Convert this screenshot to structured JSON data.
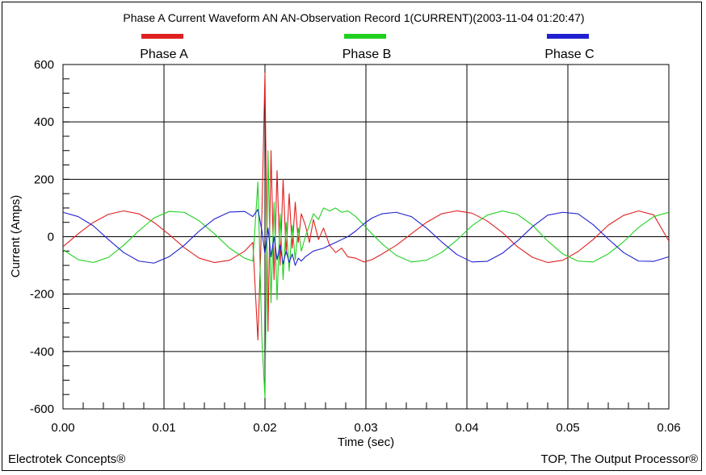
{
  "chart_data": {
    "type": "line",
    "title": "Phase A Current Waveform AN AN-Observation Record 1(CURRENT)(2003-11-04 01:20:47)",
    "xlabel": "Time (sec)",
    "ylabel": "Current (Amps)",
    "xlim": [
      0,
      0.06
    ],
    "ylim": [
      -600,
      600
    ],
    "x_ticks": [
      0.0,
      0.01,
      0.02,
      0.03,
      0.04,
      0.05,
      0.06
    ],
    "x_tick_labels": [
      "0.00",
      "0.01",
      "0.02",
      "0.03",
      "0.04",
      "0.05",
      "0.06"
    ],
    "y_ticks": [
      -600,
      -400,
      -200,
      0,
      200,
      400,
      600
    ],
    "y_tick_labels": [
      "-600",
      "-400",
      "-200",
      "0",
      "200",
      "400",
      "600"
    ],
    "grid": true,
    "legend_position": "top",
    "series": [
      {
        "name": "Phase A",
        "color": "#e02020",
        "x": [
          0.0,
          0.0015,
          0.003,
          0.0045,
          0.006,
          0.0075,
          0.009,
          0.0105,
          0.012,
          0.0135,
          0.015,
          0.0165,
          0.018,
          0.0188,
          0.0193,
          0.0197,
          0.02,
          0.0203,
          0.0206,
          0.0209,
          0.0212,
          0.0215,
          0.0218,
          0.0221,
          0.0224,
          0.0227,
          0.023,
          0.0233,
          0.0236,
          0.024,
          0.0244,
          0.0248,
          0.0253,
          0.0258,
          0.0264,
          0.027,
          0.0276,
          0.0282,
          0.029,
          0.0298,
          0.0306,
          0.0316,
          0.033,
          0.0345,
          0.036,
          0.0375,
          0.039,
          0.0405,
          0.042,
          0.0435,
          0.045,
          0.0465,
          0.048,
          0.0495,
          0.051,
          0.0525,
          0.054,
          0.0555,
          0.057,
          0.0585,
          0.06
        ],
        "y": [
          -35,
          10,
          50,
          78,
          90,
          80,
          50,
          8,
          -38,
          -75,
          -90,
          -82,
          -50,
          -20,
          -360,
          80,
          570,
          -330,
          300,
          -150,
          230,
          -100,
          200,
          -60,
          150,
          -40,
          120,
          -20,
          80,
          40,
          -20,
          60,
          -10,
          30,
          -30,
          -55,
          -40,
          -70,
          -75,
          -88,
          -80,
          -60,
          -30,
          10,
          50,
          80,
          90,
          82,
          55,
          15,
          -35,
          -72,
          -90,
          -82,
          -52,
          -10,
          40,
          74,
          90,
          76,
          -15
        ]
      },
      {
        "name": "Phase B",
        "color": "#20d020",
        "x": [
          0.0,
          0.0015,
          0.003,
          0.0045,
          0.006,
          0.0075,
          0.009,
          0.0105,
          0.012,
          0.0135,
          0.015,
          0.0165,
          0.018,
          0.0188,
          0.0193,
          0.0197,
          0.02,
          0.0203,
          0.0206,
          0.0209,
          0.0212,
          0.0215,
          0.0218,
          0.0221,
          0.0224,
          0.0227,
          0.023,
          0.0233,
          0.0236,
          0.024,
          0.0244,
          0.0248,
          0.0253,
          0.0258,
          0.0264,
          0.027,
          0.0276,
          0.0282,
          0.029,
          0.0298,
          0.0306,
          0.0316,
          0.033,
          0.0345,
          0.036,
          0.0375,
          0.039,
          0.0405,
          0.042,
          0.0435,
          0.045,
          0.0465,
          0.048,
          0.0495,
          0.051,
          0.0525,
          0.054,
          0.0555,
          0.057,
          0.0585,
          0.06
        ],
        "y": [
          -45,
          -80,
          -90,
          -72,
          -30,
          20,
          65,
          88,
          85,
          55,
          10,
          -40,
          -75,
          -85,
          190,
          -360,
          -560,
          300,
          -230,
          120,
          -220,
          80,
          -150,
          50,
          -120,
          40,
          -80,
          30,
          -50,
          0,
          40,
          80,
          60,
          100,
          90,
          100,
          85,
          90,
          70,
          40,
          10,
          -25,
          -65,
          -88,
          -82,
          -55,
          -12,
          38,
          75,
          90,
          78,
          40,
          -15,
          -60,
          -85,
          -88,
          -60,
          -18,
          32,
          70,
          85
        ]
      },
      {
        "name": "Phase C",
        "color": "#2020d0",
        "x": [
          0.0,
          0.0015,
          0.003,
          0.0045,
          0.006,
          0.0075,
          0.009,
          0.0105,
          0.012,
          0.0135,
          0.015,
          0.0165,
          0.018,
          0.0188,
          0.0193,
          0.0197,
          0.02,
          0.0203,
          0.0206,
          0.0209,
          0.0212,
          0.0215,
          0.0218,
          0.0221,
          0.0224,
          0.0227,
          0.023,
          0.0233,
          0.0236,
          0.024,
          0.0244,
          0.0248,
          0.0253,
          0.0258,
          0.0264,
          0.027,
          0.0276,
          0.0282,
          0.029,
          0.0298,
          0.0306,
          0.0316,
          0.033,
          0.0345,
          0.036,
          0.0375,
          0.039,
          0.0405,
          0.042,
          0.0435,
          0.045,
          0.0465,
          0.048,
          0.0495,
          0.051,
          0.0525,
          0.054,
          0.0555,
          0.057,
          0.0585,
          0.06
        ],
        "y": [
          85,
          70,
          38,
          -10,
          -55,
          -85,
          -92,
          -70,
          -30,
          20,
          62,
          86,
          88,
          70,
          95,
          20,
          -60,
          30,
          -70,
          0,
          -80,
          -30,
          -95,
          -50,
          -90,
          -60,
          -100,
          -75,
          -85,
          -70,
          -60,
          -50,
          -45,
          -40,
          -30,
          -20,
          -10,
          0,
          20,
          45,
          65,
          80,
          85,
          70,
          30,
          -18,
          -62,
          -88,
          -86,
          -58,
          -15,
          35,
          75,
          85,
          80,
          42,
          -8,
          -55,
          -85,
          -86,
          -70
        ]
      }
    ]
  },
  "footer": {
    "left": "Electrotek Concepts®",
    "right": "TOP, The Output Processor®"
  }
}
